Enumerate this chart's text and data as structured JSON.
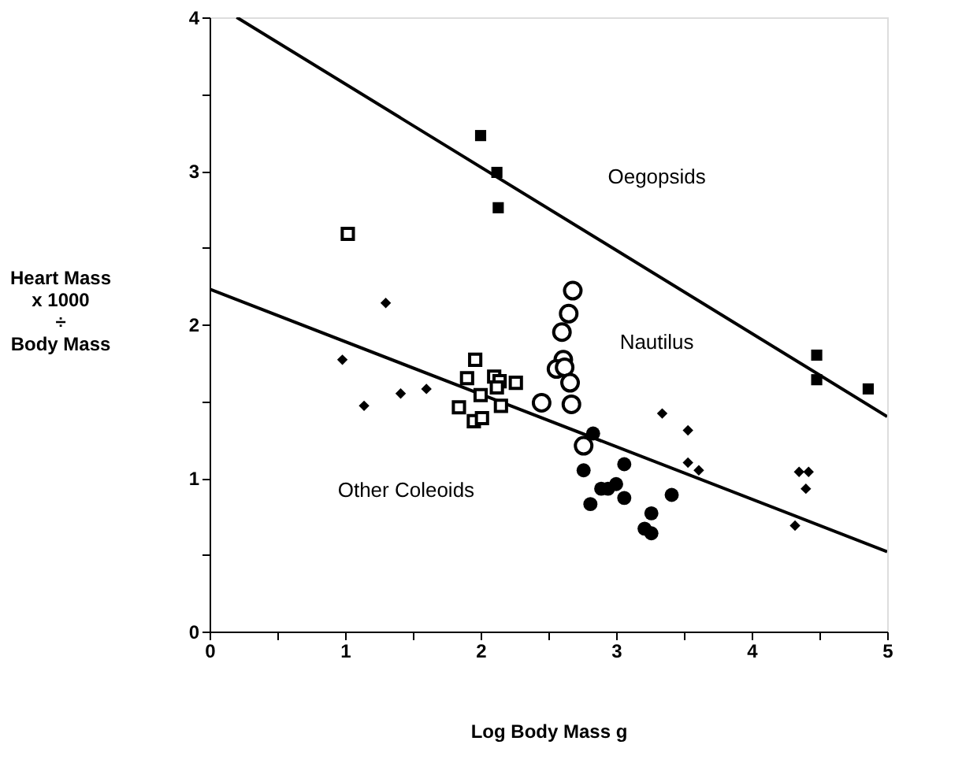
{
  "chart_data": {
    "type": "scatter",
    "xlabel": "Log Body Mass g",
    "ylabel": "Heart Mass\nx 1000\n÷\nBody Mass",
    "xlim": [
      0,
      5
    ],
    "ylim": [
      0,
      4
    ],
    "xticks": [
      0,
      {
        "value": 0.5,
        "label": null
      },
      1,
      {
        "value": 1.5,
        "label": null
      },
      2,
      {
        "value": 2.5,
        "label": null
      },
      3,
      {
        "value": 3.5,
        "label": null
      },
      4,
      {
        "value": 4.5,
        "label": null
      },
      5
    ],
    "yticks": [
      0,
      {
        "value": 0.5,
        "label": null
      },
      1,
      {
        "value": 1.5,
        "label": null
      },
      2,
      {
        "value": 2.5,
        "label": null
      },
      3,
      {
        "value": 3.5,
        "label": null
      },
      4
    ],
    "grid": false,
    "annotations": [
      "Oegopsids",
      "Nautilus",
      "Other Coleoids"
    ],
    "series": [
      {
        "type": "line",
        "color": "#000000",
        "line_style": "solid",
        "x": [
          0.2,
          5
        ],
        "values": [
          4.0,
          1.4
        ],
        "marker": "none"
      },
      {
        "type": "line",
        "color": "#000000",
        "line_style": "solid",
        "x": [
          0,
          5
        ],
        "values": [
          2.23,
          0.52
        ],
        "marker": "none"
      },
      {
        "color": "#000000",
        "marker": "square",
        "x": [
          2.0,
          2.12,
          2.13,
          4.48,
          4.48,
          4.86
        ],
        "values": [
          3.23,
          2.99,
          2.76,
          1.8,
          1.64,
          1.58
        ]
      },
      {
        "color": "#ffffff",
        "marker": "square",
        "x": [
          1.02,
          1.96,
          1.9,
          2.1,
          2.14,
          2.26,
          2.0,
          2.12,
          2.15,
          1.84,
          1.95,
          2.01
        ],
        "values": [
          2.59,
          1.77,
          1.65,
          1.66,
          1.63,
          1.62,
          1.54,
          1.59,
          1.47,
          1.46,
          1.37,
          1.39
        ]
      },
      {
        "color": "#000000",
        "marker": "diamond",
        "x": [
          1.3,
          0.98,
          1.14,
          1.41,
          1.6,
          3.34,
          3.53,
          3.53,
          3.61,
          4.35,
          4.42,
          4.4,
          4.32
        ],
        "values": [
          2.14,
          1.77,
          1.47,
          1.55,
          1.58,
          1.42,
          1.31,
          1.1,
          1.05,
          1.04,
          1.04,
          0.93,
          0.69
        ]
      },
      {
        "color": "#000000",
        "marker": "circle",
        "x": [
          2.83,
          2.76,
          3.06,
          2.89,
          2.94,
          3.0,
          2.81,
          3.06,
          3.41,
          3.26,
          3.21,
          3.26
        ],
        "values": [
          1.29,
          1.05,
          1.09,
          0.93,
          0.93,
          0.96,
          0.83,
          0.87,
          0.89,
          0.77,
          0.67,
          0.64
        ]
      },
      {
        "color": "#ffffff",
        "marker": "circle",
        "x": [
          2.68,
          2.65,
          2.6,
          2.61,
          2.56,
          2.62,
          2.66,
          2.45,
          2.67,
          2.76
        ],
        "values": [
          2.22,
          2.07,
          1.95,
          1.77,
          1.71,
          1.72,
          1.62,
          1.49,
          1.48,
          1.21
        ]
      }
    ]
  }
}
